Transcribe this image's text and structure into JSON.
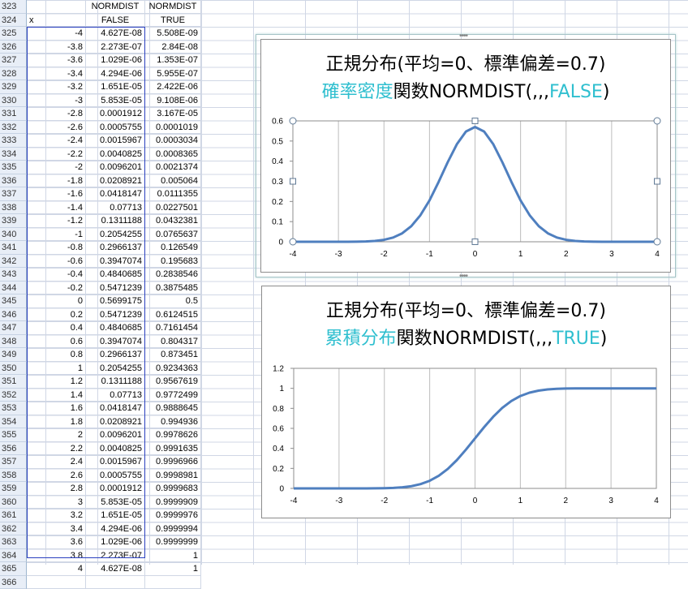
{
  "sheet": {
    "rows": [
      {
        "n": "323",
        "a": "",
        "b": "NORMDIST",
        "c": "NORMDIST"
      },
      {
        "n": "324",
        "a": "x",
        "b": "FALSE",
        "c": "TRUE"
      },
      {
        "n": "325",
        "a": "-4",
        "b": "4.627E-08",
        "c": "5.508E-09"
      },
      {
        "n": "326",
        "a": "-3.8",
        "b": "2.273E-07",
        "c": "2.84E-08"
      },
      {
        "n": "327",
        "a": "-3.6",
        "b": "1.029E-06",
        "c": "1.353E-07"
      },
      {
        "n": "328",
        "a": "-3.4",
        "b": "4.294E-06",
        "c": "5.955E-07"
      },
      {
        "n": "329",
        "a": "-3.2",
        "b": "1.651E-05",
        "c": "2.422E-06"
      },
      {
        "n": "330",
        "a": "-3",
        "b": "5.853E-05",
        "c": "9.108E-06"
      },
      {
        "n": "331",
        "a": "-2.8",
        "b": "0.0001912",
        "c": "3.167E-05"
      },
      {
        "n": "332",
        "a": "-2.6",
        "b": "0.0005755",
        "c": "0.0001019"
      },
      {
        "n": "333",
        "a": "-2.4",
        "b": "0.0015967",
        "c": "0.0003034"
      },
      {
        "n": "334",
        "a": "-2.2",
        "b": "0.0040825",
        "c": "0.0008365"
      },
      {
        "n": "335",
        "a": "-2",
        "b": "0.0096201",
        "c": "0.0021374"
      },
      {
        "n": "336",
        "a": "-1.8",
        "b": "0.0208921",
        "c": "0.005064"
      },
      {
        "n": "337",
        "a": "-1.6",
        "b": "0.0418147",
        "c": "0.0111355"
      },
      {
        "n": "338",
        "a": "-1.4",
        "b": "0.07713",
        "c": "0.0227501"
      },
      {
        "n": "339",
        "a": "-1.2",
        "b": "0.1311188",
        "c": "0.0432381"
      },
      {
        "n": "340",
        "a": "-1",
        "b": "0.2054255",
        "c": "0.0765637"
      },
      {
        "n": "341",
        "a": "-0.8",
        "b": "0.2966137",
        "c": "0.126549"
      },
      {
        "n": "342",
        "a": "-0.6",
        "b": "0.3947074",
        "c": "0.195683"
      },
      {
        "n": "343",
        "a": "-0.4",
        "b": "0.4840685",
        "c": "0.2838546"
      },
      {
        "n": "344",
        "a": "-0.2",
        "b": "0.5471239",
        "c": "0.3875485"
      },
      {
        "n": "345",
        "a": "0",
        "b": "0.5699175",
        "c": "0.5"
      },
      {
        "n": "346",
        "a": "0.2",
        "b": "0.5471239",
        "c": "0.6124515"
      },
      {
        "n": "347",
        "a": "0.4",
        "b": "0.4840685",
        "c": "0.7161454"
      },
      {
        "n": "348",
        "a": "0.6",
        "b": "0.3947074",
        "c": "0.804317"
      },
      {
        "n": "349",
        "a": "0.8",
        "b": "0.2966137",
        "c": "0.873451"
      },
      {
        "n": "350",
        "a": "1",
        "b": "0.2054255",
        "c": "0.9234363"
      },
      {
        "n": "351",
        "a": "1.2",
        "b": "0.1311188",
        "c": "0.9567619"
      },
      {
        "n": "352",
        "a": "1.4",
        "b": "0.07713",
        "c": "0.9772499"
      },
      {
        "n": "353",
        "a": "1.6",
        "b": "0.0418147",
        "c": "0.9888645"
      },
      {
        "n": "354",
        "a": "1.8",
        "b": "0.0208921",
        "c": "0.994936"
      },
      {
        "n": "355",
        "a": "2",
        "b": "0.0096201",
        "c": "0.9978626"
      },
      {
        "n": "356",
        "a": "2.2",
        "b": "0.0040825",
        "c": "0.9991635"
      },
      {
        "n": "357",
        "a": "2.4",
        "b": "0.0015967",
        "c": "0.9996966"
      },
      {
        "n": "358",
        "a": "2.6",
        "b": "0.0005755",
        "c": "0.9998981"
      },
      {
        "n": "359",
        "a": "2.8",
        "b": "0.0001912",
        "c": "0.9999683"
      },
      {
        "n": "360",
        "a": "3",
        "b": "5.853E-05",
        "c": "0.9999909"
      },
      {
        "n": "361",
        "a": "3.2",
        "b": "1.651E-05",
        "c": "0.9999976"
      },
      {
        "n": "362",
        "a": "3.4",
        "b": "4.294E-06",
        "c": "0.9999994"
      },
      {
        "n": "363",
        "a": "3.6",
        "b": "1.029E-06",
        "c": "0.9999999"
      },
      {
        "n": "364",
        "a": "3.8",
        "b": "2.273E-07",
        "c": "1"
      },
      {
        "n": "365",
        "a": "4",
        "b": "4.627E-08",
        "c": "1"
      },
      {
        "n": "366",
        "a": "",
        "b": "",
        "c": ""
      }
    ]
  },
  "charts": {
    "pdf": {
      "title_line1": "正規分布(平均=0、標準偏差=0.7)",
      "title_line2_cyan": "確率密度",
      "title_line2_rest": "関数NORMDIST(,,,",
      "title_line2_cyan2": "FALSE",
      "title_line2_end": ")"
    },
    "cdf": {
      "title_line1": "正規分布(平均=0、標準偏差=0.7)",
      "title_line2_cyan": "累積分布",
      "title_line2_rest": "関数NORMDIST(,,,",
      "title_line2_cyan2": "TRUE",
      "title_line2_end": ")"
    },
    "line_color": "#4f7fbf",
    "accent_color": "#2fbfcf"
  },
  "chart_data": [
    {
      "type": "line",
      "x": [
        -4,
        -3.8,
        -3.6,
        -3.4,
        -3.2,
        -3,
        -2.8,
        -2.6,
        -2.4,
        -2.2,
        -2,
        -1.8,
        -1.6,
        -1.4,
        -1.2,
        -1,
        -0.8,
        -0.6,
        -0.4,
        -0.2,
        0,
        0.2,
        0.4,
        0.6,
        0.8,
        1,
        1.2,
        1.4,
        1.6,
        1.8,
        2,
        2.2,
        2.4,
        2.6,
        2.8,
        3,
        3.2,
        3.4,
        3.6,
        3.8,
        4
      ],
      "y": [
        4.627e-08,
        2.273e-07,
        1.029e-06,
        4.294e-06,
        1.651e-05,
        5.853e-05,
        0.0001912,
        0.0005755,
        0.0015967,
        0.0040825,
        0.0096201,
        0.0208921,
        0.0418147,
        0.07713,
        0.1311188,
        0.2054255,
        0.2966137,
        0.3947074,
        0.4840685,
        0.5471239,
        0.5699175,
        0.5471239,
        0.4840685,
        0.3947074,
        0.2966137,
        0.2054255,
        0.1311188,
        0.07713,
        0.0418147,
        0.0208921,
        0.0096201,
        0.0040825,
        0.0015967,
        0.0005755,
        0.0001912,
        5.853e-05,
        1.651e-05,
        4.294e-06,
        1.029e-06,
        2.273e-07,
        4.627e-08
      ],
      "xticks": [
        "-4",
        "-3",
        "-2",
        "-1",
        "0",
        "1",
        "2",
        "3",
        "4"
      ],
      "yticks": [
        "0",
        "0.1",
        "0.2",
        "0.3",
        "0.4",
        "0.5",
        "0.6"
      ],
      "xlim": [
        -4,
        4
      ],
      "ylim": [
        0,
        0.6
      ],
      "grid": "vertical"
    },
    {
      "type": "line",
      "x": [
        -4,
        -3.8,
        -3.6,
        -3.4,
        -3.2,
        -3,
        -2.8,
        -2.6,
        -2.4,
        -2.2,
        -2,
        -1.8,
        -1.6,
        -1.4,
        -1.2,
        -1,
        -0.8,
        -0.6,
        -0.4,
        -0.2,
        0,
        0.2,
        0.4,
        0.6,
        0.8,
        1,
        1.2,
        1.4,
        1.6,
        1.8,
        2,
        2.2,
        2.4,
        2.6,
        2.8,
        3,
        3.2,
        3.4,
        3.6,
        3.8,
        4
      ],
      "y": [
        5.508e-09,
        2.84e-08,
        1.353e-07,
        5.955e-07,
        2.422e-06,
        9.108e-06,
        3.167e-05,
        0.0001019,
        0.0003034,
        0.0008365,
        0.0021374,
        0.005064,
        0.0111355,
        0.0227501,
        0.0432381,
        0.0765637,
        0.126549,
        0.195683,
        0.2838546,
        0.3875485,
        0.5,
        0.6124515,
        0.7161454,
        0.804317,
        0.873451,
        0.9234363,
        0.9567619,
        0.9772499,
        0.9888645,
        0.994936,
        0.9978626,
        0.9991635,
        0.9996966,
        0.9998981,
        0.9999683,
        0.9999909,
        0.9999976,
        0.9999994,
        0.9999999,
        1,
        1
      ],
      "xticks": [
        "-4",
        "-3",
        "-2",
        "-1",
        "0",
        "1",
        "2",
        "3",
        "4"
      ],
      "yticks": [
        "0",
        "0.2",
        "0.4",
        "0.6",
        "0.8",
        "1",
        "1.2"
      ],
      "xlim": [
        -4,
        4
      ],
      "ylim": [
        0,
        1.2
      ],
      "grid": "vertical"
    }
  ]
}
